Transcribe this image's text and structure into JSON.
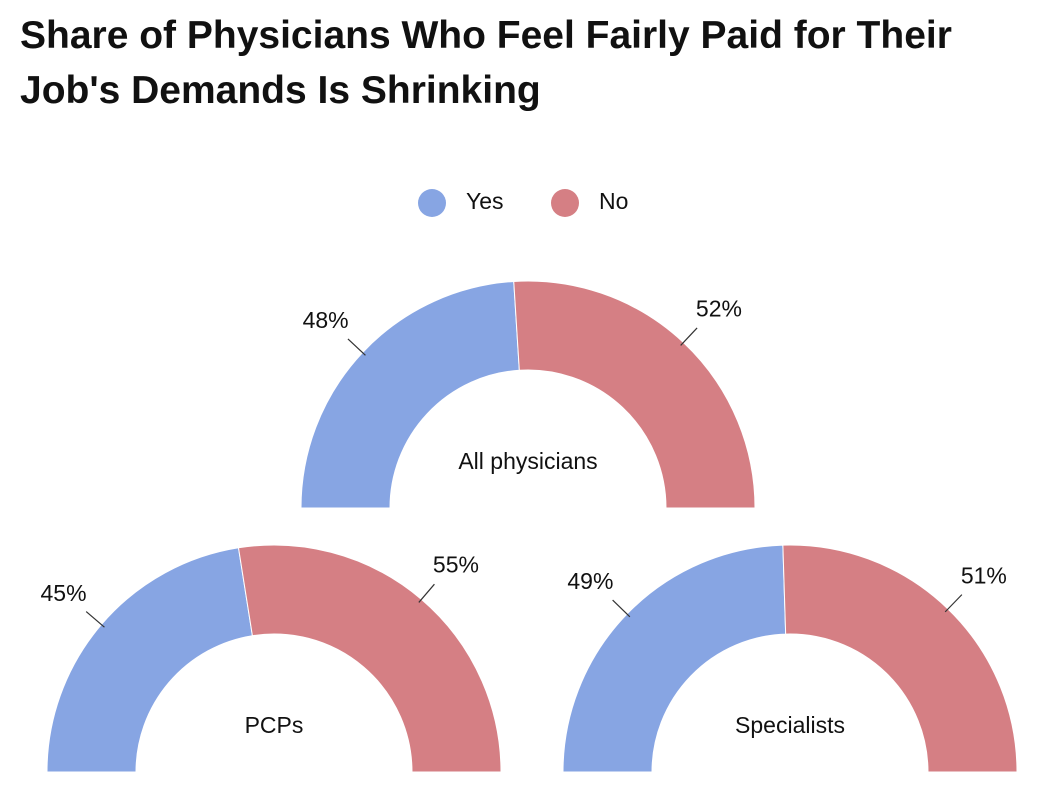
{
  "title": "Share of Physicians Who Feel Fairly Paid for Their Job's Demands Is Shrinking",
  "chart_data": [
    {
      "type": "pie",
      "title": "All physicians",
      "categories": [
        "Yes",
        "No"
      ],
      "values": [
        48,
        52
      ],
      "value_labels": [
        "48%",
        "52%"
      ],
      "colors": [
        "#87a5e3",
        "#d57f84"
      ]
    },
    {
      "type": "pie",
      "title": "PCPs",
      "categories": [
        "Yes",
        "No"
      ],
      "values": [
        45,
        55
      ],
      "value_labels": [
        "45%",
        "55%"
      ],
      "colors": [
        "#87a5e3",
        "#d57f84"
      ]
    },
    {
      "type": "pie",
      "title": "Specialists",
      "categories": [
        "Yes",
        "No"
      ],
      "values": [
        49,
        51
      ],
      "value_labels": [
        "49%",
        "51%"
      ],
      "colors": [
        "#87a5e3",
        "#d57f84"
      ]
    }
  ]
}
